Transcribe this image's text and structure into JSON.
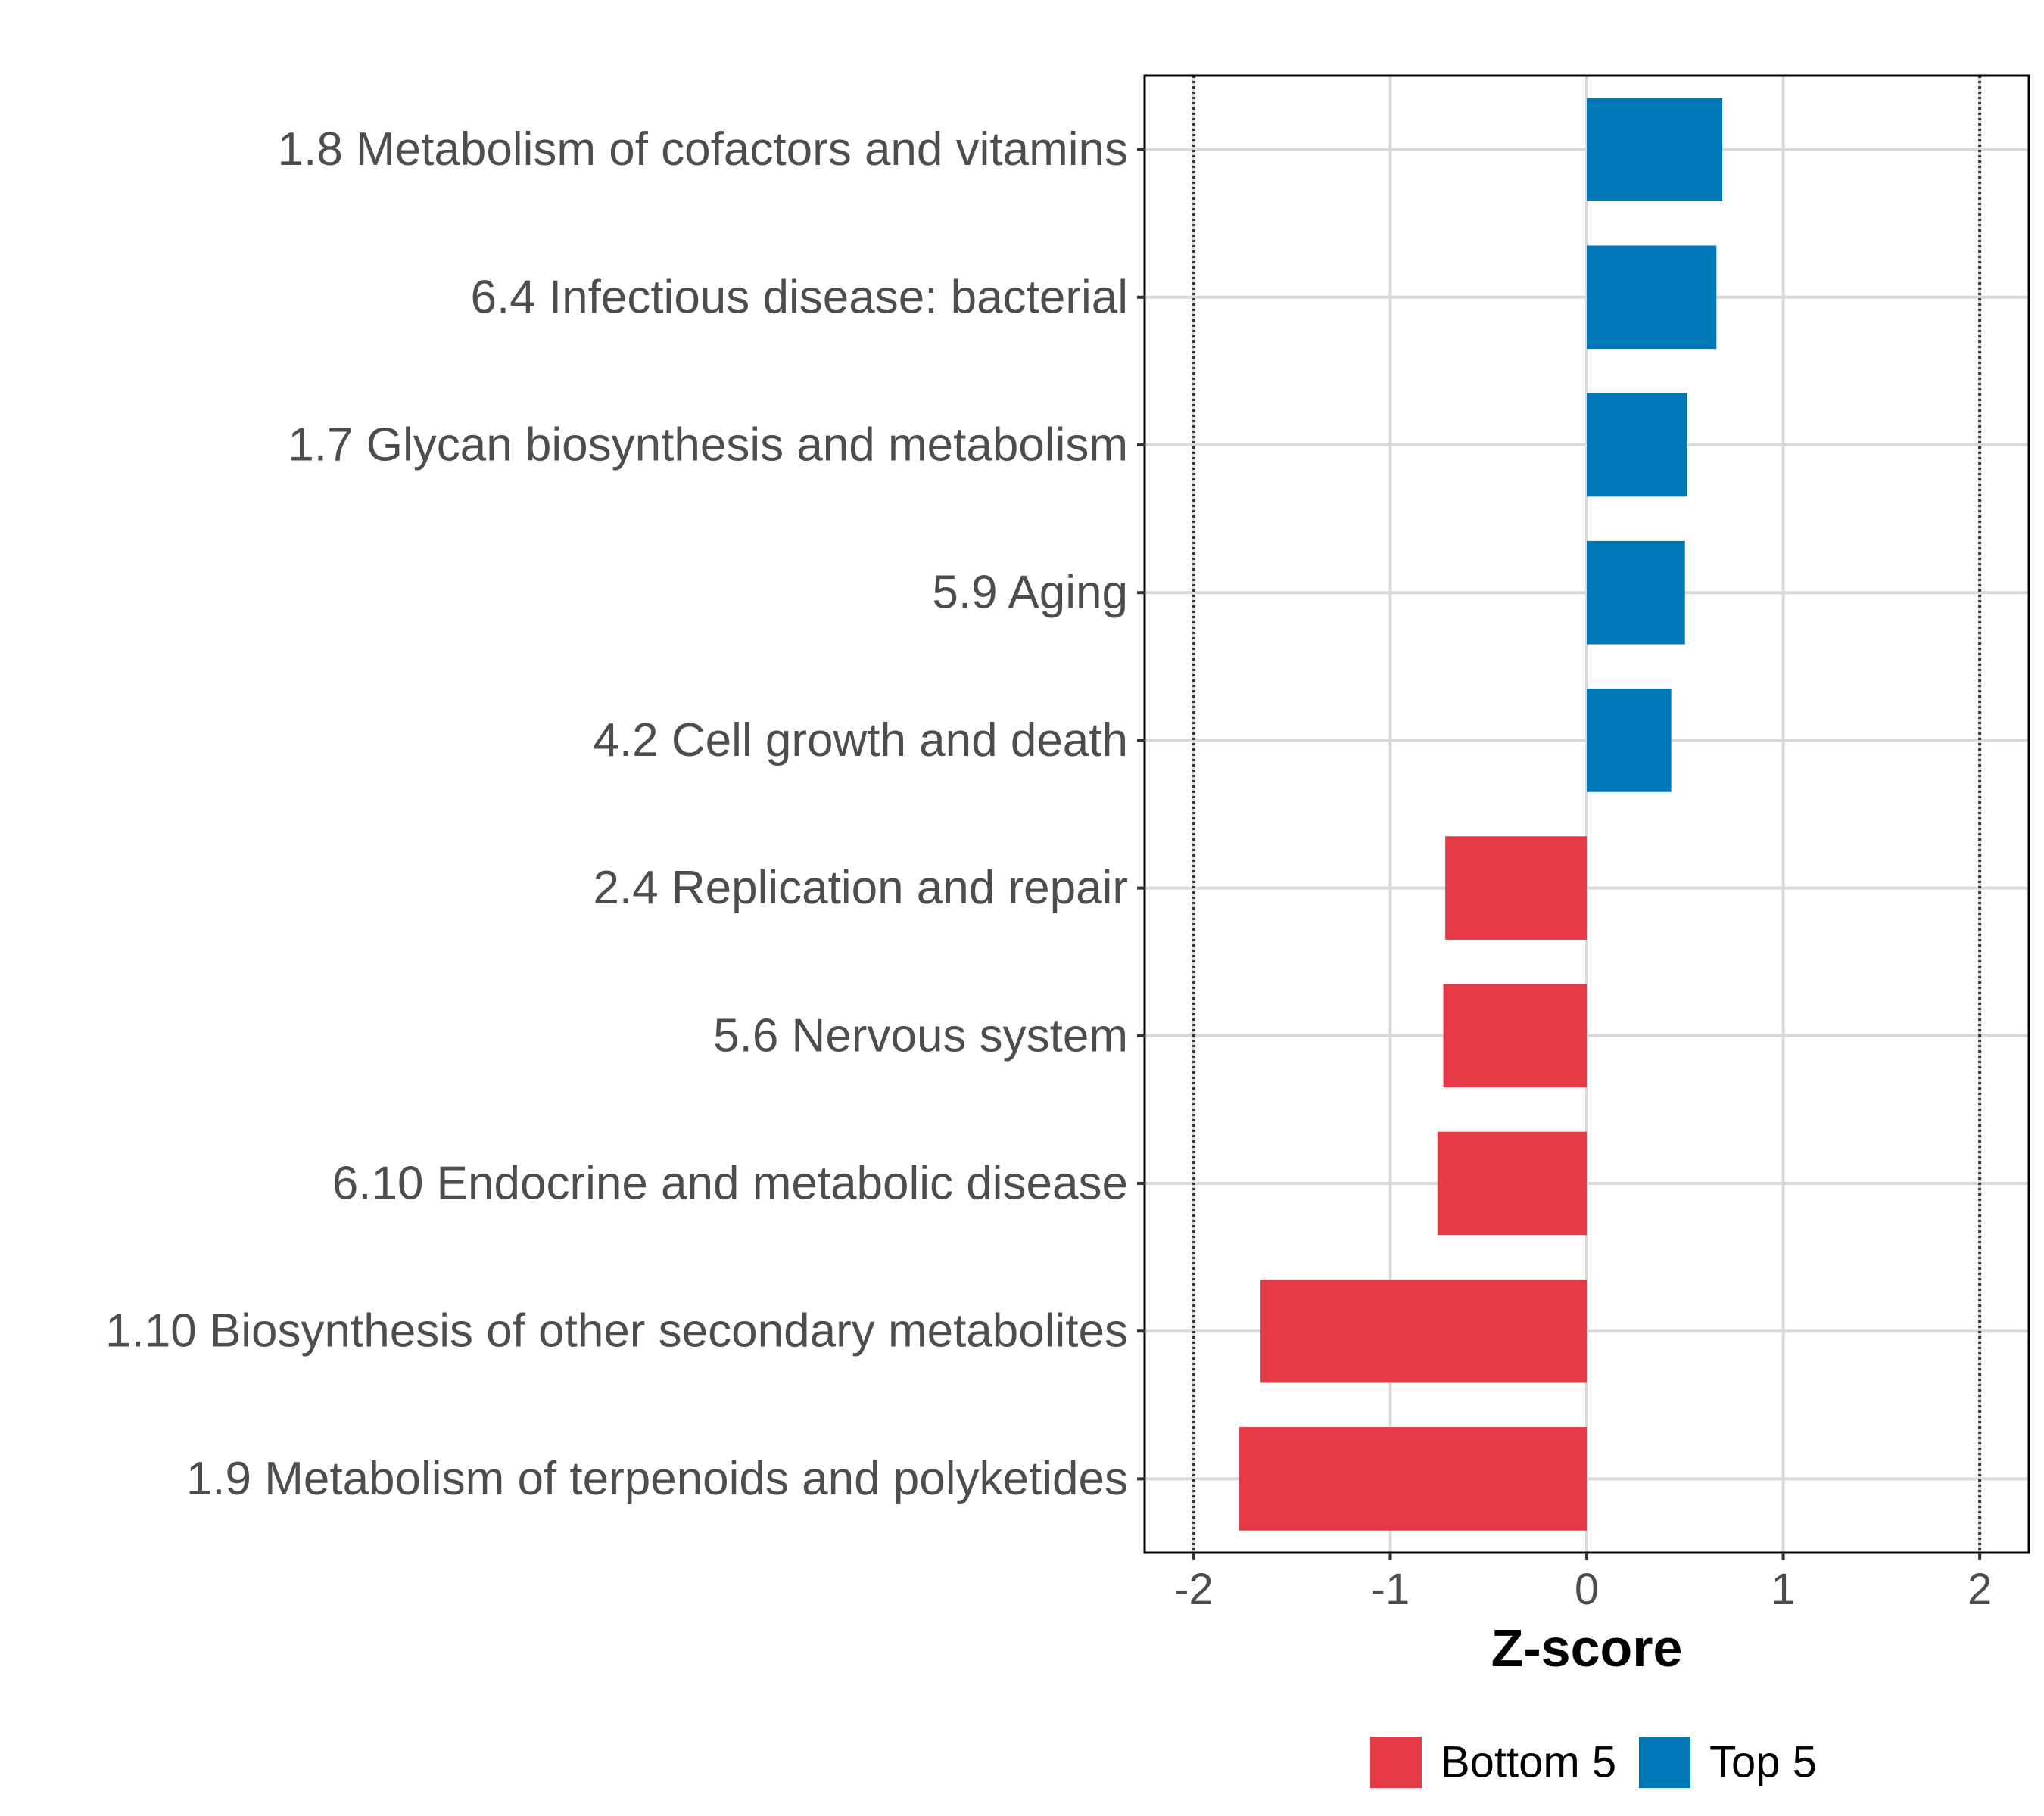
{
  "chart_data": {
    "type": "bar",
    "orientation": "horizontal",
    "xlabel": "Z-score",
    "xlim": [
      -2.25,
      2.25
    ],
    "xticks": [
      -2,
      -1,
      0,
      1,
      2
    ],
    "xtick_labels": [
      "-2",
      "-1",
      "0",
      "1",
      "2"
    ],
    "reference_lines": [
      -2,
      2
    ],
    "grid": true,
    "legend_position": "bottom",
    "categories": [
      "1.8 Metabolism of cofactors and vitamins",
      "6.4 Infectious disease: bacterial",
      "1.7 Glycan biosynthesis and metabolism",
      "5.9 Aging",
      "4.2 Cell growth and death",
      "2.4 Replication and repair",
      "5.6 Nervous system",
      "6.10 Endocrine and metabolic disease",
      "1.10 Biosynthesis of other secondary metabolites",
      "1.9 Metabolism of terpenoids and polyketides"
    ],
    "values": [
      0.69,
      0.66,
      0.51,
      0.5,
      0.43,
      -0.72,
      -0.73,
      -0.76,
      -1.66,
      -1.77
    ],
    "groups": [
      "Top 5",
      "Top 5",
      "Top 5",
      "Top 5",
      "Top 5",
      "Bottom 5",
      "Bottom 5",
      "Bottom 5",
      "Bottom 5",
      "Bottom 5"
    ],
    "legend": [
      {
        "name": "Bottom 5",
        "color": "#E63946"
      },
      {
        "name": "Top 5",
        "color": "#0077B6"
      }
    ]
  }
}
